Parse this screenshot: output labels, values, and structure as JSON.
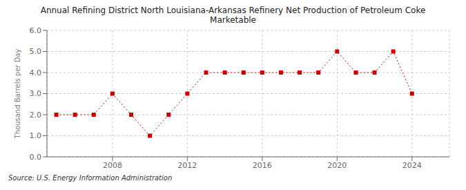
{
  "chart_data": {
    "type": "line",
    "title": "Annual Refining District North Louisiana-Arkansas Refinery Net Production of Petroleum Coke\nMarketable",
    "y_label": "Thousand Barrels per Day",
    "annotations": [
      "Source: U.S. Energy Information Administration"
    ],
    "x": [
      2005,
      2006,
      2007,
      2008,
      2009,
      2010,
      2011,
      2012,
      2013,
      2014,
      2015,
      2016,
      2017,
      2018,
      2019,
      2020,
      2021,
      2022,
      2023,
      2024
    ],
    "values": [
      2.0,
      2.0,
      2.0,
      3.0,
      2.0,
      1.0,
      2.0,
      3.0,
      4.0,
      4.0,
      4.0,
      4.0,
      4.0,
      4.0,
      4.0,
      5.0,
      4.0,
      4.0,
      5.0,
      3.0
    ],
    "color": "#cc0000",
    "marker": "square",
    "line_style": "dotted",
    "xlim": [
      2004.5,
      2026.0
    ],
    "ylim": [
      0.0,
      6.0
    ],
    "xticks": [
      2008,
      2012,
      2016,
      2020,
      2024
    ],
    "yticks": [
      {
        "value": 0.0,
        "label": "0.0"
      },
      {
        "value": 1.0,
        "label": "1.0"
      },
      {
        "value": 2.0,
        "label": "2.0"
      },
      {
        "value": 3.0,
        "label": "3.0"
      },
      {
        "value": 4.0,
        "label": "4.0"
      },
      {
        "value": 5.0,
        "label": "5.0"
      },
      {
        "value": 6.0,
        "label": "6.0"
      }
    ],
    "grid": true
  }
}
